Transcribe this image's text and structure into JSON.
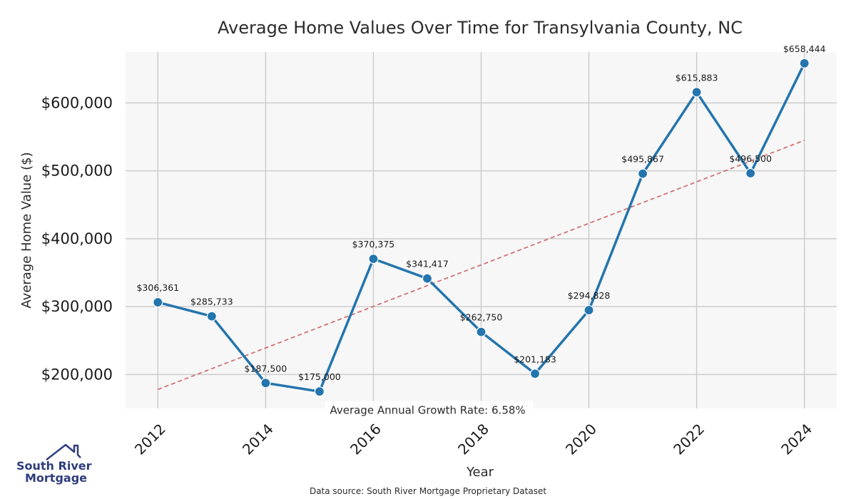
{
  "chart_data": {
    "type": "line",
    "title": "Average Home Values Over Time for Transylvania County, NC",
    "xlabel": "Year",
    "ylabel": "Average Home Value ($)",
    "x": [
      2012,
      2013,
      2014,
      2015,
      2016,
      2017,
      2018,
      2019,
      2020,
      2021,
      2022,
      2023,
      2024
    ],
    "values": [
      306361,
      285733,
      187500,
      175000,
      370375,
      341417,
      262750,
      201183,
      294828,
      495867,
      615883,
      496500,
      658444
    ],
    "data_labels": [
      "$306,361",
      "$285,733",
      "$187,500",
      "$175,000",
      "$370,375",
      "$341,417",
      "$262,750",
      "$201,183",
      "$294,828",
      "$495,867",
      "$615,883",
      "$496,500",
      "$658,444"
    ],
    "x_ticks": [
      "2012",
      "2014",
      "2016",
      "2018",
      "2020",
      "2022",
      "2024"
    ],
    "x_tick_values": [
      2012,
      2014,
      2016,
      2018,
      2020,
      2022,
      2024
    ],
    "y_ticks": [
      "$200,000",
      "$300,000",
      "$400,000",
      "$500,000",
      "$600,000"
    ],
    "y_tick_values": [
      200000,
      300000,
      400000,
      500000,
      600000
    ],
    "xlim": [
      2011.4,
      2024.6
    ],
    "ylim": [
      150000,
      675000
    ],
    "trend_line": {
      "start": [
        2012,
        178000
      ],
      "end": [
        2024,
        545000
      ]
    },
    "annotation": "Average Annual Growth Rate: 6.58%",
    "annotation_anchor": [
      2015.1,
      147500
    ],
    "grid": true,
    "colors": {
      "line": "#2475ad",
      "trend": "#d07373",
      "grid": "#cccccc",
      "plot_bg": "#f7f7f7"
    }
  },
  "source_note": "Data source: South River Mortgage Proprietary Dataset",
  "logo": {
    "line1": "South River",
    "line2": "Mortgage",
    "color": "#2f3d7c"
  }
}
